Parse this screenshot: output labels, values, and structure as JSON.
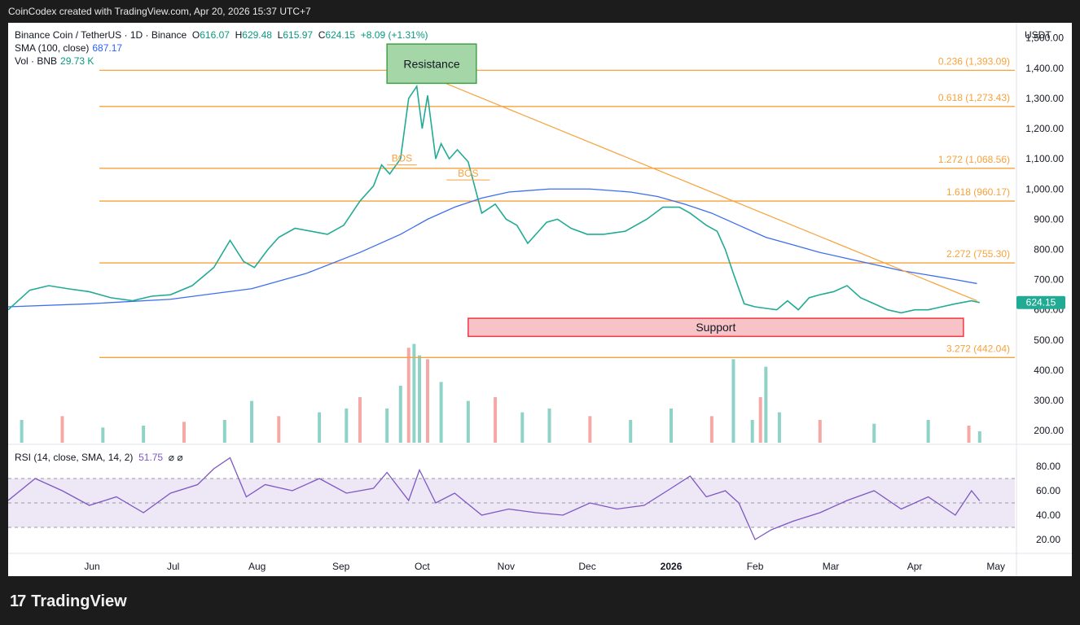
{
  "header": {
    "credit": "CoinCodex created with TradingView.com, Apr 20, 2026 15:37 UTC+7"
  },
  "legend": {
    "symbol": "Binance Coin / TetherUS · 1D · Binance",
    "o_label": "O",
    "o": "616.07",
    "h_label": "H",
    "h": "629.48",
    "l_label": "L",
    "l": "615.97",
    "c_label": "C",
    "c": "624.15",
    "change": "+8.09 (+1.31%)",
    "sma_label": "SMA (100, close)",
    "sma_value": "687.17",
    "vol_label": "Vol · BNB",
    "vol_value": "29.73 K"
  },
  "rsi_legend": {
    "label": "RSI (14, close, SMA, 14, 2)",
    "value": "51.75",
    "icons": "⌀ ⌀"
  },
  "footer": {
    "brand": "TradingView",
    "mark": "17"
  },
  "chart_data": {
    "type": "line",
    "price_axis_unit": "USDT",
    "price_ticks": [
      "1,500.00",
      "1,400.00",
      "1,300.00",
      "1,200.00",
      "1,100.00",
      "1,000.00",
      "900.00",
      "800.00",
      "700.00",
      "600.00",
      "500.00",
      "400.00",
      "300.00",
      "200.00"
    ],
    "price_tick_values": [
      1500,
      1400,
      1300,
      1200,
      1100,
      1000,
      900,
      800,
      700,
      600,
      500,
      400,
      300,
      200
    ],
    "ylim": [
      160,
      1510
    ],
    "current_price_label": "624.15",
    "current_price": 624.15,
    "x_ticks": [
      "Jun",
      "Jul",
      "Aug",
      "Sep",
      "Oct",
      "Nov",
      "Dec",
      "2026",
      "Feb",
      "Mar",
      "Apr",
      "May"
    ],
    "x_tick_days": [
      31,
      61,
      92,
      123,
      153,
      184,
      214,
      245,
      276,
      304,
      335,
      365
    ],
    "xlim": [
      0,
      372
    ],
    "fib_levels": [
      {
        "label": "0.236 (1,393.09)",
        "value": 1393.09
      },
      {
        "label": "0.618 (1,273.43)",
        "value": 1273.43
      },
      {
        "label": "1.272 (1,068.56)",
        "value": 1068.56
      },
      {
        "label": "1.618 (960.17)",
        "value": 960.17
      },
      {
        "label": "2.272 (755.30)",
        "value": 755.3
      },
      {
        "label": "3.272 (442.04)",
        "value": 442.04
      }
    ],
    "price_series": {
      "name": "Binance Coin / TetherUS",
      "days": [
        0,
        8,
        15,
        22,
        30,
        38,
        46,
        53,
        60,
        68,
        76,
        82,
        87,
        91,
        96,
        100,
        106,
        112,
        118,
        124,
        130,
        135,
        138,
        141,
        145,
        148,
        151,
        153,
        155,
        158,
        160,
        163,
        166,
        170,
        175,
        180,
        184,
        188,
        192,
        196,
        199,
        203,
        208,
        214,
        220,
        228,
        236,
        242,
        248,
        252,
        255,
        258,
        262,
        265,
        268,
        272,
        276,
        280,
        284,
        288,
        292,
        296,
        300,
        305,
        310,
        315,
        320,
        325,
        330,
        335,
        340,
        345,
        350,
        356,
        359
      ],
      "values": [
        600,
        665,
        680,
        670,
        660,
        640,
        630,
        645,
        650,
        680,
        740,
        830,
        760,
        740,
        800,
        840,
        870,
        860,
        850,
        880,
        960,
        1010,
        1080,
        1050,
        1100,
        1300,
        1340,
        1200,
        1310,
        1100,
        1150,
        1100,
        1130,
        1090,
        920,
        950,
        900,
        880,
        820,
        860,
        890,
        900,
        870,
        850,
        850,
        860,
        900,
        940,
        940,
        920,
        900,
        880,
        860,
        800,
        720,
        620,
        610,
        605,
        600,
        630,
        600,
        640,
        650,
        660,
        680,
        640,
        620,
        600,
        590,
        600,
        600,
        610,
        620,
        630,
        624
      ]
    },
    "sma_series": {
      "name": "SMA (100, close)",
      "days": [
        0,
        30,
        60,
        90,
        110,
        130,
        145,
        155,
        165,
        175,
        185,
        200,
        215,
        230,
        240,
        250,
        260,
        270,
        280,
        290,
        300,
        310,
        320,
        330,
        340,
        350,
        358
      ],
      "values": [
        610,
        620,
        635,
        670,
        720,
        790,
        850,
        900,
        940,
        970,
        990,
        1000,
        1000,
        990,
        975,
        950,
        920,
        880,
        840,
        815,
        790,
        770,
        750,
        730,
        715,
        700,
        687
      ]
    },
    "volume_series": {
      "name": "Vol · BNB",
      "ylim_k": [
        0,
        300
      ],
      "days": [
        5,
        20,
        35,
        50,
        65,
        80,
        90,
        100,
        115,
        125,
        130,
        140,
        145,
        148,
        150,
        152,
        155,
        160,
        170,
        180,
        190,
        200,
        215,
        230,
        245,
        260,
        268,
        275,
        278,
        280,
        285,
        300,
        320,
        340,
        355,
        359
      ],
      "values": [
        60,
        70,
        40,
        45,
        55,
        60,
        110,
        70,
        80,
        90,
        120,
        90,
        150,
        250,
        260,
        230,
        220,
        160,
        110,
        120,
        80,
        90,
        70,
        60,
        90,
        70,
        220,
        60,
        120,
        200,
        80,
        60,
        50,
        60,
        45,
        30
      ]
    },
    "resistance_box": {
      "label": "Resistance",
      "day_from": 140,
      "day_to": 173,
      "price_from": 1350,
      "price_to": 1480
    },
    "support_box": {
      "label": "Support",
      "day_from": 170,
      "day_to": 353,
      "price_from": 512,
      "price_to": 572
    },
    "trendline": {
      "day_from": 148,
      "price_from": 1400,
      "day_to": 358,
      "price_to": 630
    },
    "bos_markers": [
      {
        "label": "BOS",
        "day_from": 140,
        "day_to": 151,
        "price": 1080
      },
      {
        "label": "BOS",
        "day_from": 162,
        "day_to": 178,
        "price": 1030
      }
    ],
    "rsi": {
      "ticks": [
        "80.00",
        "60.00",
        "40.00",
        "20.00"
      ],
      "tick_values": [
        80,
        60,
        40,
        20
      ],
      "ylim": [
        10,
        90
      ],
      "upper_band": 70,
      "middle": 50,
      "lower_band": 30,
      "days": [
        0,
        10,
        20,
        30,
        40,
        50,
        60,
        70,
        76,
        82,
        88,
        95,
        105,
        115,
        125,
        135,
        140,
        148,
        152,
        158,
        165,
        175,
        185,
        195,
        205,
        215,
        225,
        235,
        245,
        252,
        258,
        265,
        270,
        276,
        282,
        290,
        300,
        310,
        320,
        330,
        340,
        350,
        356,
        359
      ],
      "values": [
        52,
        70,
        60,
        48,
        55,
        42,
        58,
        65,
        78,
        87,
        55,
        65,
        60,
        70,
        58,
        62,
        75,
        52,
        77,
        50,
        58,
        40,
        45,
        42,
        40,
        50,
        45,
        48,
        62,
        72,
        55,
        60,
        50,
        20,
        28,
        35,
        42,
        52,
        60,
        45,
        55,
        40,
        60,
        51.75
      ]
    }
  }
}
